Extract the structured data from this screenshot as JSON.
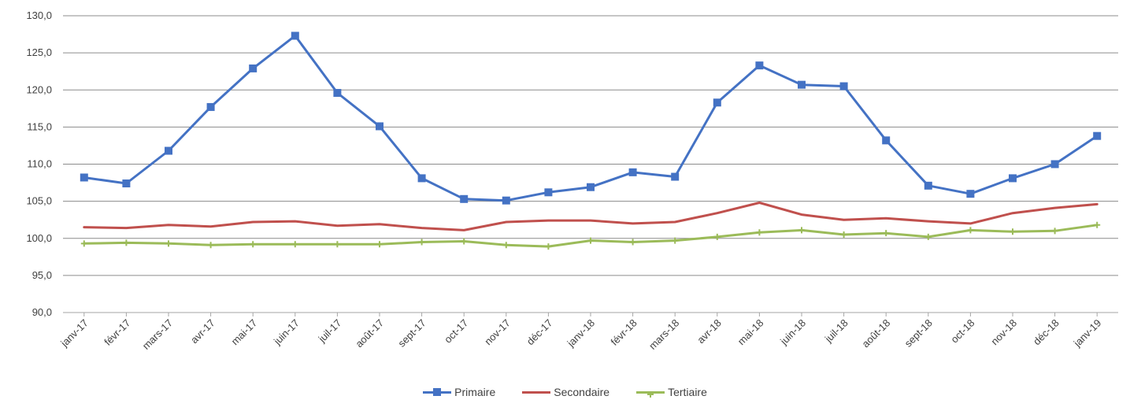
{
  "chart_data": {
    "type": "line",
    "title": "",
    "categories": [
      "janv-17",
      "févr-17",
      "mars-17",
      "avr-17",
      "mai-17",
      "juin-17",
      "juil-17",
      "août-17",
      "sept-17",
      "oct-17",
      "nov-17",
      "déc-17",
      "janv-18",
      "févr-18",
      "mars-18",
      "avr-18",
      "mai-18",
      "juin-18",
      "juil-18",
      "août-18",
      "sept-18",
      "oct-18",
      "nov-18",
      "déc-18",
      "janv-19"
    ],
    "yticks": [
      "90,0",
      "95,0",
      "100,0",
      "105,0",
      "110,0",
      "115,0",
      "120,0",
      "125,0",
      "130,0"
    ],
    "ylim": [
      90,
      130
    ],
    "grid": true,
    "legend_position": "bottom",
    "series": [
      {
        "name": "Primaire",
        "color": "#4472C4",
        "marker": "square",
        "values": [
          108.2,
          107.4,
          111.8,
          117.7,
          122.9,
          127.3,
          119.6,
          115.1,
          108.1,
          105.3,
          105.1,
          106.2,
          106.9,
          108.9,
          108.3,
          118.3,
          123.3,
          120.7,
          120.5,
          113.2,
          107.1,
          106.0,
          108.1,
          110.0,
          113.8
        ]
      },
      {
        "name": "Secondaire",
        "color": "#C0504D",
        "marker": "none",
        "values": [
          101.5,
          101.4,
          101.8,
          101.6,
          102.2,
          102.3,
          101.7,
          101.9,
          101.4,
          101.1,
          102.2,
          102.4,
          102.4,
          102.0,
          102.2,
          103.4,
          104.8,
          103.2,
          102.5,
          102.7,
          102.3,
          102.0,
          103.4,
          104.1,
          104.6
        ]
      },
      {
        "name": "Tertiaire",
        "color": "#9BBB59",
        "marker": "plus",
        "values": [
          99.3,
          99.4,
          99.3,
          99.1,
          99.2,
          99.2,
          99.2,
          99.2,
          99.5,
          99.6,
          99.1,
          98.9,
          99.7,
          99.5,
          99.7,
          100.2,
          100.8,
          101.1,
          100.5,
          100.7,
          100.2,
          101.1,
          100.9,
          101.0,
          101.8
        ]
      }
    ]
  }
}
